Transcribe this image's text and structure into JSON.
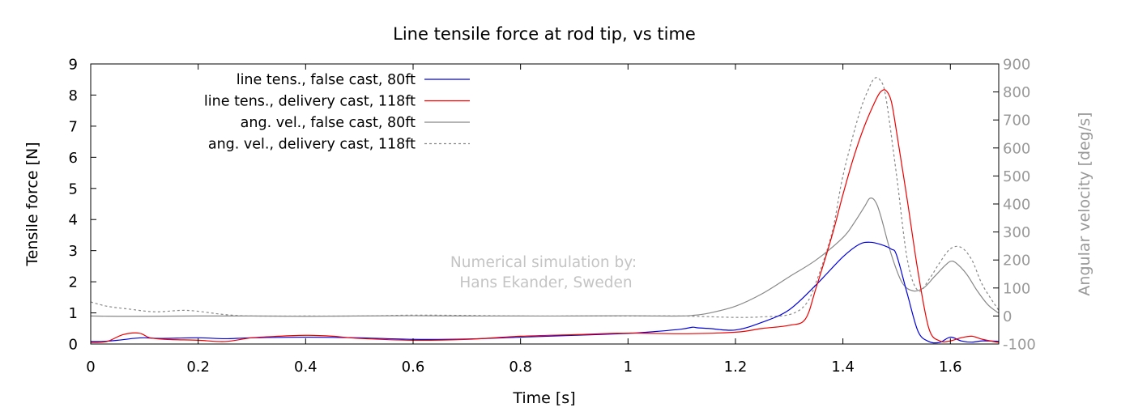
{
  "chart_data": {
    "type": "line",
    "title": "Line tensile force at rod tip, vs time",
    "xlabel": "Time [s]",
    "ylabel": "Tensile force [N]",
    "y2label": "Angular velocity [deg/s]",
    "xlim": [
      0,
      1.69
    ],
    "ylim": [
      0,
      9
    ],
    "y2lim": [
      -100,
      900
    ],
    "xticks": [
      0,
      0.2,
      0.4,
      0.6,
      0.8,
      1,
      1.2,
      1.4,
      1.6
    ],
    "xtick_labels": [
      "0",
      "0.2",
      "0.4",
      "0.6",
      "0.8",
      "1",
      "1.2",
      "1.4",
      "1.6"
    ],
    "yticks": [
      0,
      1,
      2,
      3,
      4,
      5,
      6,
      7,
      8,
      9
    ],
    "ytick_labels": [
      "0",
      "1",
      "2",
      "3",
      "4",
      "5",
      "6",
      "7",
      "8",
      "9"
    ],
    "y2ticks": [
      -100,
      0,
      100,
      200,
      300,
      400,
      500,
      600,
      700,
      800,
      900
    ],
    "y2tick_labels": [
      "-100",
      "0",
      "100",
      "200",
      "300",
      "400",
      "500",
      "600",
      "700",
      "800",
      "900"
    ],
    "grid": false,
    "legend_position": "top-left",
    "annotation": [
      "Numerical simulation by:",
      "Hans Ekander, Sweden"
    ],
    "series": [
      {
        "name": "line tens., false cast, 80ft",
        "axis": "left",
        "color": "#0000dd",
        "dash": "solid",
        "x": [
          0,
          0.02,
          0.05,
          0.08,
          0.1,
          0.13,
          0.2,
          0.25,
          0.3,
          0.4,
          0.5,
          0.6,
          0.7,
          0.8,
          0.9,
          1.0,
          1.05,
          1.1,
          1.12,
          1.13,
          1.15,
          1.2,
          1.25,
          1.3,
          1.35,
          1.4,
          1.43,
          1.45,
          1.47,
          1.49,
          1.5,
          1.52,
          1.54,
          1.56,
          1.58,
          1.6,
          1.62,
          1.64,
          1.66,
          1.69
        ],
        "y": [
          0.08,
          0.08,
          0.12,
          0.18,
          0.2,
          0.18,
          0.2,
          0.17,
          0.2,
          0.22,
          0.2,
          0.15,
          0.16,
          0.22,
          0.28,
          0.34,
          0.4,
          0.48,
          0.54,
          0.52,
          0.5,
          0.45,
          0.7,
          1.1,
          1.9,
          2.8,
          3.2,
          3.27,
          3.2,
          3.05,
          2.85,
          1.6,
          0.4,
          0.08,
          0.05,
          0.22,
          0.1,
          0.06,
          0.1,
          0.09
        ]
      },
      {
        "name": "line tens., delivery cast, 118ft",
        "axis": "left",
        "color": "#ee0000",
        "dash": "solid",
        "x": [
          0,
          0.03,
          0.06,
          0.09,
          0.11,
          0.14,
          0.2,
          0.25,
          0.3,
          0.35,
          0.4,
          0.45,
          0.5,
          0.6,
          0.7,
          0.8,
          0.9,
          1.0,
          1.1,
          1.2,
          1.25,
          1.3,
          1.33,
          1.35,
          1.38,
          1.4,
          1.42,
          1.44,
          1.46,
          1.47,
          1.48,
          1.49,
          1.5,
          1.52,
          1.54,
          1.56,
          1.58,
          1.6,
          1.62,
          1.64,
          1.66,
          1.69
        ],
        "y": [
          0.05,
          0.08,
          0.3,
          0.35,
          0.2,
          0.15,
          0.12,
          0.08,
          0.2,
          0.25,
          0.28,
          0.25,
          0.18,
          0.12,
          0.15,
          0.25,
          0.3,
          0.35,
          0.33,
          0.38,
          0.5,
          0.6,
          0.8,
          1.8,
          3.5,
          4.8,
          6.0,
          7.0,
          7.8,
          8.1,
          8.15,
          7.8,
          6.8,
          4.6,
          2.3,
          0.5,
          0.1,
          0.1,
          0.2,
          0.25,
          0.15,
          0.05
        ]
      },
      {
        "name": "ang. vel., false cast, 80ft",
        "axis": "right",
        "color": "#888888",
        "dash": "solid",
        "x": [
          0,
          0.05,
          0.1,
          0.2,
          0.3,
          0.4,
          0.5,
          0.6,
          0.7,
          0.8,
          0.9,
          1.0,
          1.05,
          1.1,
          1.12,
          1.15,
          1.2,
          1.25,
          1.3,
          1.35,
          1.4,
          1.42,
          1.44,
          1.45,
          1.46,
          1.47,
          1.49,
          1.51,
          1.53,
          1.55,
          1.57,
          1.59,
          1.6,
          1.61,
          1.63,
          1.65,
          1.67,
          1.69
        ],
        "y": [
          0,
          -1,
          -1,
          0,
          0,
          -1,
          0,
          1,
          0,
          0,
          0,
          1,
          0,
          0,
          2,
          10,
          35,
          80,
          140,
          200,
          280,
          330,
          390,
          420,
          410,
          360,
          220,
          120,
          90,
          100,
          140,
          180,
          195,
          190,
          150,
          90,
          40,
          10
        ]
      },
      {
        "name": "ang. vel., delivery cast, 118ft",
        "axis": "right",
        "color": "#888888",
        "dash": "dashed",
        "x": [
          0,
          0.03,
          0.07,
          0.12,
          0.18,
          0.25,
          0.3,
          0.4,
          0.5,
          0.6,
          0.7,
          0.8,
          0.9,
          1.0,
          1.1,
          1.2,
          1.25,
          1.3,
          1.33,
          1.35,
          1.38,
          1.4,
          1.43,
          1.45,
          1.46,
          1.47,
          1.48,
          1.5,
          1.52,
          1.54,
          1.56,
          1.58,
          1.6,
          1.62,
          1.64,
          1.66,
          1.69
        ],
        "y": [
          50,
          35,
          25,
          15,
          20,
          5,
          0,
          0,
          0,
          3,
          2,
          0,
          0,
          0,
          0,
          -5,
          -3,
          5,
          40,
          120,
          300,
          500,
          720,
          820,
          850,
          840,
          780,
          500,
          200,
          90,
          130,
          190,
          240,
          245,
          200,
          110,
          20
        ]
      }
    ]
  }
}
